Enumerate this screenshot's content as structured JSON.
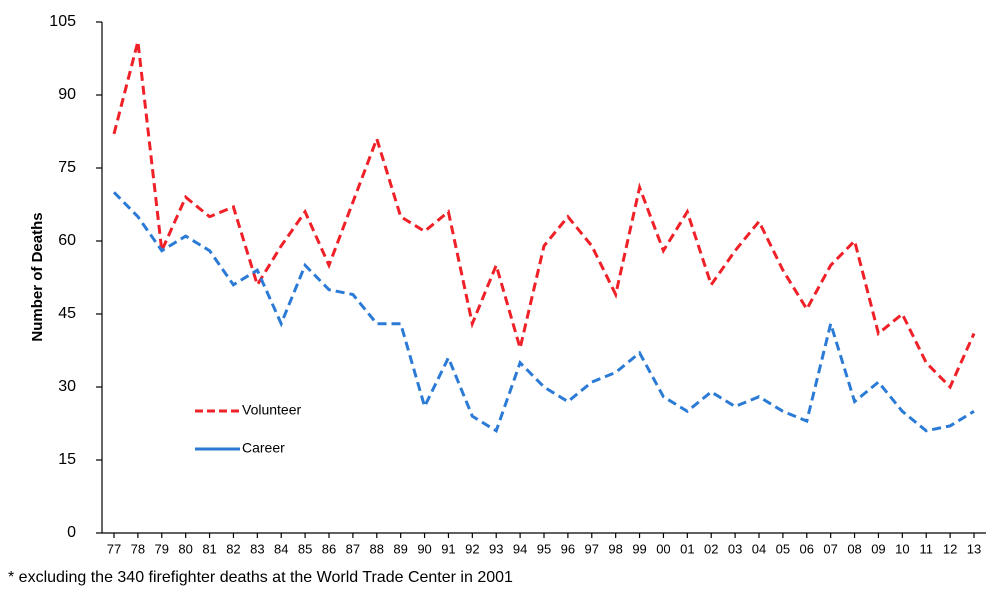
{
  "chart_data": {
    "type": "line",
    "ylabel": "Number of Deaths",
    "note": "* excluding the 340 firefighter deaths at the World Trade Center in 2001",
    "categories": [
      "77",
      "78",
      "79",
      "80",
      "81",
      "82",
      "83",
      "84",
      "85",
      "86",
      "87",
      "88",
      "89",
      "90",
      "91",
      "92",
      "93",
      "94",
      "95",
      "96",
      "97",
      "98",
      "99",
      "00",
      "01",
      "02",
      "03",
      "04",
      "05",
      "06",
      "07",
      "08",
      "09",
      "10",
      "11",
      "12",
      "13"
    ],
    "series": [
      {
        "name": "Volunteer",
        "color": "#ef2027",
        "values": [
          82,
          101,
          58,
          69,
          65,
          67,
          51,
          59,
          66,
          55,
          68,
          81,
          65,
          62,
          66,
          43,
          55,
          38,
          59,
          65,
          59,
          49,
          71,
          58,
          66,
          51,
          58,
          64,
          54,
          46,
          55,
          60,
          41,
          45,
          35,
          30,
          41
        ]
      },
      {
        "name": "Career",
        "color": "#2b7bd6",
        "values": [
          70,
          65,
          58,
          61,
          58,
          51,
          54,
          43,
          55,
          50,
          49,
          43,
          43,
          26,
          36,
          24,
          21,
          35,
          30,
          27,
          31,
          33,
          37,
          28,
          25,
          29,
          26,
          28,
          25,
          23,
          43,
          27,
          31,
          25,
          21,
          22,
          25
        ]
      }
    ],
    "ylim": [
      0,
      105
    ],
    "yticks": [
      0,
      15,
      30,
      45,
      60,
      75,
      90,
      105
    ]
  }
}
